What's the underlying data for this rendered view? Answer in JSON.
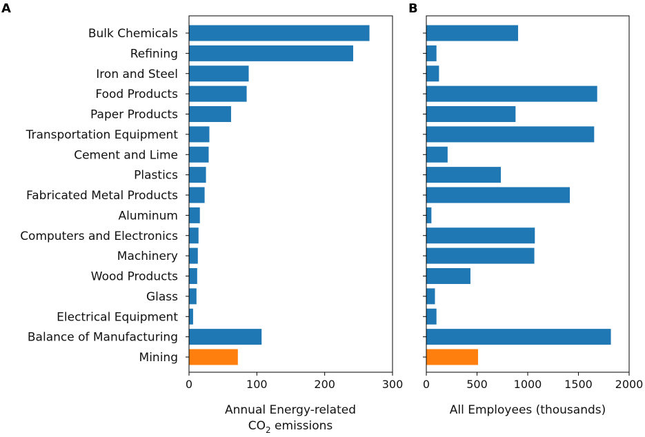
{
  "chart_data": [
    {
      "panel": "A",
      "type": "bar",
      "orientation": "horizontal",
      "categories": [
        "Bulk Chemicals",
        "Refining",
        "Iron and Steel",
        "Food Products",
        "Paper Products",
        "Transportation Equipment",
        "Cement and Lime",
        "Plastics",
        "Fabricated Metal Products",
        "Aluminum",
        "Computers and Electronics",
        "Machinery",
        "Wood Products",
        "Glass",
        "Electrical Equipment",
        "Balance of Manufacturing",
        "Mining"
      ],
      "values": [
        266,
        242,
        88,
        85,
        62,
        30,
        29,
        25,
        23,
        16,
        14,
        13,
        12,
        11,
        6,
        107,
        72
      ],
      "colors": [
        "#1f77b4",
        "#1f77b4",
        "#1f77b4",
        "#1f77b4",
        "#1f77b4",
        "#1f77b4",
        "#1f77b4",
        "#1f77b4",
        "#1f77b4",
        "#1f77b4",
        "#1f77b4",
        "#1f77b4",
        "#1f77b4",
        "#1f77b4",
        "#1f77b4",
        "#1f77b4",
        "#ff7f0e"
      ],
      "xlim": [
        0,
        300
      ],
      "xticks": [
        0,
        100,
        200,
        300
      ],
      "xlabel_line1": "Annual Energy-related",
      "xlabel_line2": "CO",
      "xlabel_sub": "2",
      "xlabel_tail": " emissions"
    },
    {
      "panel": "B",
      "type": "bar",
      "orientation": "horizontal",
      "categories": [
        "Bulk Chemicals",
        "Refining",
        "Iron and Steel",
        "Food Products",
        "Paper Products",
        "Transportation Equipment",
        "Cement and Lime",
        "Plastics",
        "Fabricated Metal Products",
        "Aluminum",
        "Computers and Electronics",
        "Machinery",
        "Wood Products",
        "Glass",
        "Electrical Equipment",
        "Balance of Manufacturing",
        "Mining"
      ],
      "values": [
        905,
        100,
        125,
        1685,
        880,
        1655,
        210,
        735,
        1415,
        50,
        1070,
        1065,
        435,
        85,
        100,
        1820,
        510
      ],
      "colors": [
        "#1f77b4",
        "#1f77b4",
        "#1f77b4",
        "#1f77b4",
        "#1f77b4",
        "#1f77b4",
        "#1f77b4",
        "#1f77b4",
        "#1f77b4",
        "#1f77b4",
        "#1f77b4",
        "#1f77b4",
        "#1f77b4",
        "#1f77b4",
        "#1f77b4",
        "#1f77b4",
        "#ff7f0e"
      ],
      "xlim": [
        0,
        2000
      ],
      "xticks": [
        0,
        500,
        1000,
        1500,
        2000
      ],
      "xlabel": "All Employees (thousands)"
    }
  ]
}
